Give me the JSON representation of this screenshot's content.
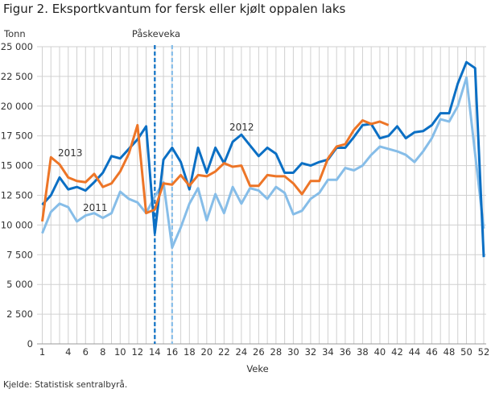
{
  "chart_data": {
    "type": "line",
    "title": "Figur 2. Eksportkvantum for fersk eller kjølt oppalen laks",
    "ylabel": "Tonn",
    "xlabel": "Veke",
    "source": "Kjelde: Statistisk sentralbyrå.",
    "ylim": [
      0,
      25000
    ],
    "xlim": [
      1,
      52
    ],
    "yticks": [
      0,
      2500,
      5000,
      7500,
      10000,
      12500,
      15000,
      17500,
      20000,
      22500,
      25000
    ],
    "ytick_labels": [
      "0",
      "2 500",
      "5 000",
      "7 500",
      "10 000",
      "12 500",
      "15 000",
      "17 500",
      "20 000",
      "22 500",
      "25 000"
    ],
    "xticks": [
      1,
      4,
      6,
      8,
      10,
      12,
      14,
      16,
      18,
      20,
      22,
      24,
      26,
      28,
      30,
      32,
      34,
      36,
      38,
      40,
      42,
      44,
      46,
      48,
      50,
      52
    ],
    "grid": true,
    "annotation": {
      "label": "Påskeveka",
      "weeks": [
        14,
        16
      ]
    },
    "series": [
      {
        "name": "2011",
        "color": "#86bde8",
        "values": [
          9300,
          11100,
          11800,
          11500,
          10300,
          10800,
          11000,
          10600,
          11000,
          12800,
          12200,
          11900,
          11000,
          12400,
          13600,
          8100,
          9800,
          11800,
          13100,
          10400,
          12600,
          11000,
          13200,
          11800,
          13100,
          12900,
          12200,
          13200,
          12700,
          10900,
          11200,
          12200,
          12700,
          13800,
          13800,
          14800,
          14600,
          15000,
          15900,
          16600,
          16400,
          16200,
          15900,
          15300,
          16200,
          17300,
          18900,
          18700,
          20000,
          22400,
          16000,
          9700
        ]
      },
      {
        "name": "2012",
        "color": "#0b6fc4",
        "values": [
          11700,
          12500,
          14000,
          13000,
          13200,
          12900,
          13600,
          14400,
          15800,
          15600,
          16400,
          17200,
          18300,
          9300,
          15500,
          16500,
          15300,
          13000,
          16500,
          14400,
          16500,
          15200,
          17000,
          17600,
          16700,
          15800,
          16500,
          16000,
          14400,
          14400,
          15200,
          15000,
          15300,
          15500,
          16500,
          16500,
          17400,
          18400,
          18500,
          17300,
          17500,
          18300,
          17300,
          17800,
          17900,
          18400,
          19400,
          19400,
          21900,
          23700,
          23200,
          7300
        ]
      },
      {
        "name": "2013",
        "color": "#ed7527",
        "values": [
          10300,
          15700,
          15100,
          14000,
          13700,
          13600,
          14300,
          13200,
          13500,
          14500,
          16000,
          18400,
          11000,
          11300,
          13500,
          13400,
          14200,
          13300,
          14200,
          14100,
          14500,
          15200,
          14900,
          15000,
          13300,
          13300,
          14200,
          14100,
          14100,
          13500,
          12600,
          13700,
          13700,
          15600,
          16600,
          16800,
          18000,
          18800,
          18500,
          18700,
          18400
        ]
      }
    ]
  }
}
